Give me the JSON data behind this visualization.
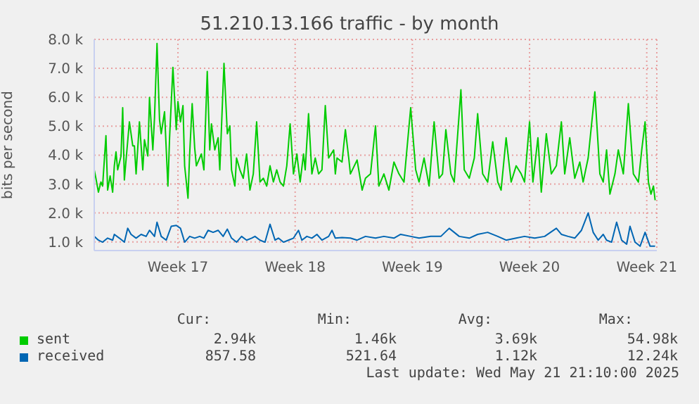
{
  "chart_data": {
    "type": "line",
    "title": "51.210.13.166 traffic - by month",
    "ylabel": "bits per second",
    "xlim": [
      "2025-04-18T09:00",
      "2025-05-21T23:24"
    ],
    "xticks": [
      {
        "value": "2025-04-23T09:00",
        "label": "Week 17"
      },
      {
        "value": "2025-04-30T09:00",
        "label": "Week 18"
      },
      {
        "value": "2025-05-07T09:00",
        "label": "Week 19"
      },
      {
        "value": "2025-05-14T09:00",
        "label": "Week 20"
      },
      {
        "value": "2025-05-21T09:00",
        "label": "Week 21"
      }
    ],
    "ylim": [
      700,
      8000
    ],
    "yticks": [
      {
        "value": 1000,
        "label": "1.0 k"
      },
      {
        "value": 2000,
        "label": "2.0 k"
      },
      {
        "value": 3000,
        "label": "3.0 k"
      },
      {
        "value": 4000,
        "label": "4.0 k"
      },
      {
        "value": 5000,
        "label": "5.0 k"
      },
      {
        "value": 6000,
        "label": "6.0 k"
      },
      {
        "value": 7000,
        "label": "7.0 k"
      },
      {
        "value": 8000,
        "label": "8.0 k"
      }
    ],
    "grid": true,
    "legend": "bottom",
    "marker": "none",
    "line_style": "solid",
    "series": [
      {
        "name": "sent",
        "color": "#00cc00",
        "x": [
          "2025-04-18T09:00",
          "2025-04-18T11:24",
          "2025-04-18T15:00",
          "2025-04-18T18:36",
          "2025-04-18T21:00",
          "2025-04-19T01:48",
          "2025-04-19T04:12",
          "2025-04-19T07:48",
          "2025-04-19T11:24",
          "2025-04-19T13:48",
          "2025-04-19T16:12",
          "2025-04-19T18:36",
          "2025-04-19T23:24",
          "2025-04-20T01:48",
          "2025-04-20T04:12",
          "2025-04-20T06:36",
          "2025-04-20T11:24",
          "2025-04-20T16:12",
          "2025-04-20T18:36",
          "2025-04-20T21:00",
          "2025-04-21T01:48",
          "2025-04-21T06:36",
          "2025-04-21T09:00",
          "2025-04-21T13:48",
          "2025-04-21T16:12",
          "2025-04-21T21:00",
          "2025-04-21T23:24",
          "2025-04-22T03:00",
          "2025-04-22T06:36",
          "2025-04-22T09:00",
          "2025-04-22T13:48",
          "2025-04-22T18:36",
          "2025-04-22T21:00",
          "2025-04-23T01:48",
          "2025-04-23T06:36",
          "2025-04-23T09:00",
          "2025-04-23T12:36",
          "2025-04-23T16:12",
          "2025-04-23T18:36",
          "2025-04-23T23:24",
          "2025-04-24T01:48",
          "2025-04-24T05:24",
          "2025-04-24T09:00",
          "2025-04-24T11:24",
          "2025-04-24T18:36",
          "2025-04-24T22:12",
          "2025-04-25T03:00",
          "2025-04-25T06:36",
          "2025-04-25T09:00",
          "2025-04-25T13:48",
          "2025-04-25T18:36",
          "2025-04-25T21:00",
          "2025-04-26T03:00",
          "2025-04-26T07:48",
          "2025-04-26T11:24",
          "2025-04-26T13:48",
          "2025-04-26T18:36",
          "2025-04-26T21:00",
          "2025-04-27T01:48",
          "2025-04-27T06:36",
          "2025-04-27T11:24",
          "2025-04-27T16:12",
          "2025-04-27T21:00",
          "2025-04-28T01:48",
          "2025-04-28T06:36",
          "2025-04-28T11:24",
          "2025-04-28T16:12",
          "2025-04-28T21:00",
          "2025-04-29T01:48",
          "2025-04-29T06:36",
          "2025-04-29T11:24",
          "2025-04-29T16:12",
          "2025-04-29T21:00",
          "2025-04-30T01:48",
          "2025-04-30T06:36",
          "2025-04-30T11:24",
          "2025-04-30T16:12",
          "2025-04-30T21:00",
          "2025-04-30T23:24",
          "2025-05-01T04:12",
          "2025-05-01T09:00",
          "2025-05-01T13:48",
          "2025-05-01T18:36",
          "2025-05-01T23:24",
          "2025-05-02T04:12",
          "2025-05-02T09:00",
          "2025-05-02T16:12",
          "2025-05-02T18:36",
          "2025-05-02T21:00",
          "2025-05-03T04:12",
          "2025-05-03T09:00",
          "2025-05-03T13:48",
          "2025-05-03T16:12",
          "2025-05-04T01:48",
          "2025-05-04T09:00",
          "2025-05-04T13:48",
          "2025-05-04T21:00",
          "2025-05-05T04:12",
          "2025-05-05T09:00",
          "2025-05-05T16:12",
          "2025-05-05T23:24",
          "2025-05-06T06:36",
          "2025-05-06T13:48",
          "2025-05-06T21:00",
          "2025-05-07T06:36",
          "2025-05-07T13:48",
          "2025-05-07T18:36",
          "2025-05-08T01:48",
          "2025-05-08T09:00",
          "2025-05-08T16:12",
          "2025-05-08T23:24",
          "2025-05-09T04:12",
          "2025-05-09T09:00",
          "2025-05-09T16:12",
          "2025-05-09T21:00",
          "2025-05-10T06:36",
          "2025-05-10T11:24",
          "2025-05-10T18:36",
          "2025-05-11T01:48",
          "2025-05-11T06:36",
          "2025-05-11T13:48",
          "2025-05-11T21:00",
          "2025-05-12T04:12",
          "2025-05-12T11:24",
          "2025-05-12T16:12",
          "2025-05-12T23:24",
          "2025-05-13T06:36",
          "2025-05-13T13:48",
          "2025-05-13T21:00",
          "2025-05-14T01:48",
          "2025-05-14T09:00",
          "2025-05-14T13:48",
          "2025-05-14T21:00",
          "2025-05-15T01:48",
          "2025-05-15T09:00",
          "2025-05-15T16:12",
          "2025-05-15T23:24",
          "2025-05-16T06:36",
          "2025-05-16T11:24",
          "2025-05-16T18:36",
          "2025-05-17T01:48",
          "2025-05-17T09:00",
          "2025-05-17T13:48",
          "2025-05-17T21:00",
          "2025-05-18T06:36",
          "2025-05-18T13:48",
          "2025-05-18T18:36",
          "2025-05-18T23:24",
          "2025-05-19T04:12",
          "2025-05-19T11:24",
          "2025-05-19T16:12",
          "2025-05-19T23:24",
          "2025-05-20T06:36",
          "2025-05-20T13:48",
          "2025-05-20T21:00",
          "2025-05-21T01:48",
          "2025-05-21T06:36",
          "2025-05-21T11:24",
          "2025-05-21T15:00",
          "2025-05-21T18:36",
          "2025-05-21T21:00"
        ],
        "values": [
          3490,
          3200,
          2720,
          3070,
          2930,
          4670,
          2790,
          3280,
          2720,
          3630,
          4110,
          3490,
          3970,
          5640,
          3140,
          3830,
          5150,
          4320,
          4320,
          3350,
          5150,
          3490,
          4530,
          3970,
          5990,
          4180,
          5290,
          7860,
          5220,
          4740,
          5500,
          2930,
          4600,
          7030,
          4880,
          5850,
          5150,
          5710,
          3630,
          2510,
          4040,
          5780,
          4250,
          3630,
          4040,
          3490,
          6890,
          4180,
          5080,
          4180,
          4600,
          3490,
          7170,
          4740,
          5010,
          3490,
          2930,
          3900,
          3490,
          3200,
          4040,
          2790,
          3350,
          5150,
          3070,
          3200,
          2930,
          3630,
          3070,
          3490,
          3070,
          2930,
          3630,
          5080,
          3350,
          4040,
          3070,
          4040,
          3490,
          5430,
          3350,
          3900,
          3350,
          3490,
          5710,
          3900,
          4180,
          3350,
          3900,
          3760,
          4880,
          3900,
          3350,
          3830,
          2790,
          3200,
          3350,
          5010,
          2930,
          3350,
          2790,
          3760,
          3350,
          3070,
          5640,
          3490,
          3070,
          3900,
          2930,
          5150,
          3200,
          3350,
          4880,
          3350,
          3070,
          6260,
          3490,
          3200,
          3900,
          5430,
          3350,
          3070,
          4460,
          3070,
          2790,
          4600,
          3070,
          3630,
          3350,
          3070,
          5150,
          3070,
          4600,
          2720,
          4740,
          3350,
          3630,
          5150,
          3350,
          4600,
          3200,
          3760,
          3070,
          3900,
          6190,
          3350,
          3070,
          4180,
          2650,
          3350,
          4180,
          3350,
          5780,
          3350,
          3070,
          4180,
          5150,
          3070,
          2650,
          2930,
          2440
        ]
      },
      {
        "name": "received",
        "color": "#0066b3",
        "x": [
          "2025-04-18T09:00",
          "2025-04-18T15:00",
          "2025-04-18T21:00",
          "2025-04-19T04:12",
          "2025-04-19T11:24",
          "2025-04-19T13:48",
          "2025-04-19T21:00",
          "2025-04-20T04:12",
          "2025-04-20T09:00",
          "2025-04-20T13:48",
          "2025-04-20T21:00",
          "2025-04-21T04:12",
          "2025-04-21T11:24",
          "2025-04-21T16:12",
          "2025-04-21T23:24",
          "2025-04-22T03:00",
          "2025-04-22T09:00",
          "2025-04-22T16:12",
          "2025-04-22T23:24",
          "2025-04-23T06:36",
          "2025-04-23T12:36",
          "2025-04-23T18:36",
          "2025-04-24T01:48",
          "2025-04-24T09:00",
          "2025-04-24T16:12",
          "2025-04-24T22:12",
          "2025-04-25T04:12",
          "2025-04-25T11:24",
          "2025-04-25T18:36",
          "2025-04-26T01:48",
          "2025-04-26T07:48",
          "2025-04-26T13:48",
          "2025-04-26T21:00",
          "2025-04-27T04:12",
          "2025-04-27T11:24",
          "2025-04-27T18:36",
          "2025-04-27T23:24",
          "2025-04-28T06:36",
          "2025-04-28T13:48",
          "2025-04-28T21:00",
          "2025-04-29T04:12",
          "2025-04-29T09:00",
          "2025-04-29T16:12",
          "2025-04-29T23:24",
          "2025-04-30T06:36",
          "2025-04-30T13:48",
          "2025-04-30T18:36",
          "2025-05-01T01:48",
          "2025-05-01T09:00",
          "2025-05-01T16:12",
          "2025-05-01T23:24",
          "2025-05-02T09:00",
          "2025-05-02T13:48",
          "2025-05-02T18:36",
          "2025-05-03T04:12",
          "2025-05-03T16:12",
          "2025-05-04T01:48",
          "2025-05-04T13:48",
          "2025-05-05T04:12",
          "2025-05-05T16:12",
          "2025-05-06T06:36",
          "2025-05-06T16:12",
          "2025-05-07T06:36",
          "2025-05-07T18:36",
          "2025-05-08T11:24",
          "2025-05-09T01:48",
          "2025-05-09T13:48",
          "2025-05-10T04:12",
          "2025-05-10T18:36",
          "2025-05-11T06:36",
          "2025-05-11T21:00",
          "2025-05-12T11:24",
          "2025-05-12T23:24",
          "2025-05-13T13:48",
          "2025-05-14T01:48",
          "2025-05-14T16:12",
          "2025-05-15T06:36",
          "2025-05-15T23:24",
          "2025-05-16T06:36",
          "2025-05-16T16:12",
          "2025-05-17T01:48",
          "2025-05-17T11:24",
          "2025-05-17T21:00",
          "2025-05-18T04:12",
          "2025-05-18T11:24",
          "2025-05-18T18:36",
          "2025-05-18T23:24",
          "2025-05-19T06:36",
          "2025-05-19T13:48",
          "2025-05-19T21:00",
          "2025-05-20T04:12",
          "2025-05-20T09:00",
          "2025-05-20T16:12",
          "2025-05-20T23:24",
          "2025-05-21T06:36",
          "2025-05-21T13:48",
          "2025-05-21T21:00"
        ],
        "values": [
          1190,
          1060,
          990,
          1130,
          1060,
          1260,
          1130,
          990,
          1470,
          1260,
          1130,
          1260,
          1190,
          1400,
          1190,
          1680,
          1190,
          1060,
          1540,
          1570,
          1470,
          990,
          1190,
          1130,
          1190,
          1130,
          1400,
          1330,
          1400,
          1190,
          1440,
          1130,
          990,
          1190,
          1060,
          1130,
          1190,
          1060,
          990,
          1610,
          1060,
          1130,
          990,
          1060,
          1130,
          1400,
          1060,
          1190,
          1130,
          1260,
          1060,
          1190,
          1400,
          1130,
          1150,
          1130,
          1060,
          1190,
          1130,
          1190,
          1130,
          1260,
          1190,
          1130,
          1190,
          1190,
          1470,
          1190,
          1130,
          1260,
          1330,
          1190,
          1060,
          1130,
          1190,
          1130,
          1190,
          1470,
          1260,
          1190,
          1130,
          1400,
          2000,
          1330,
          1060,
          1260,
          1060,
          990,
          1680,
          1060,
          920,
          1540,
          990,
          850,
          1330,
          850,
          850
        ]
      }
    ],
    "annotations": [
      "Cur:",
      "Min:",
      "Avg:",
      "Max:",
      "2.94k",
      "1.46k",
      "3.69k",
      "54.98k",
      "857.58",
      "521.64",
      "1.12k",
      "12.24k",
      "Last update: Wed May 21 21:10:00 2025"
    ]
  }
}
